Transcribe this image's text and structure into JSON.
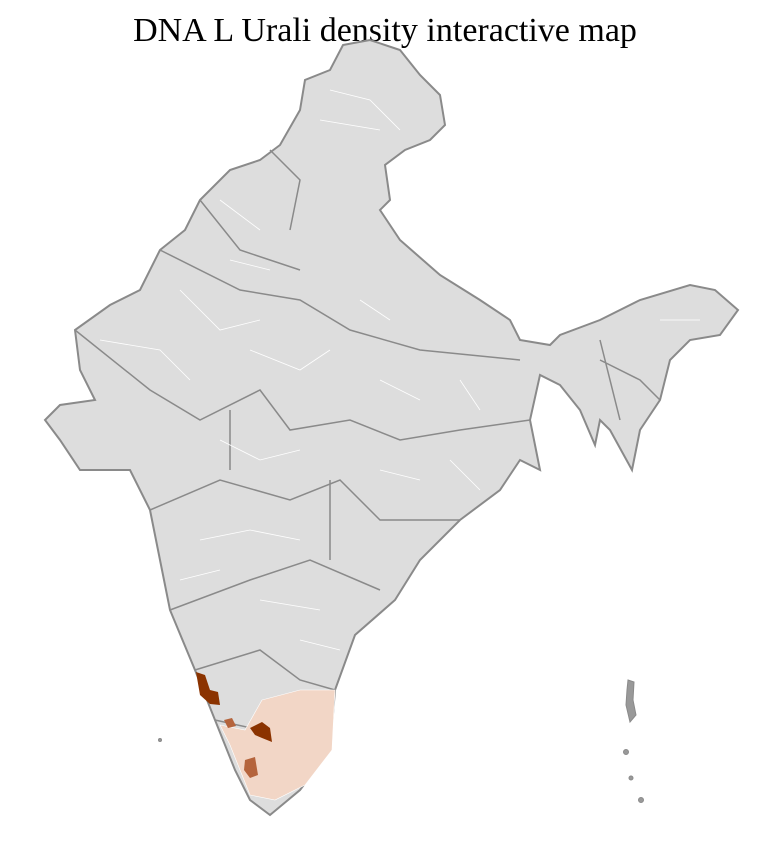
{
  "title": "DNA L Urali density interactive map",
  "colors": {
    "land": "#dddddd",
    "state_border": "#8a8a8a",
    "district_border": "#ffffff",
    "density_high": "#8b3300",
    "density_medium": "#b5643c",
    "density_low": "#f2d6c6"
  },
  "highlighted_regions": [
    {
      "level": "high"
    },
    {
      "level": "high"
    },
    {
      "level": "medium"
    },
    {
      "level": "medium"
    },
    {
      "level": "low"
    }
  ]
}
